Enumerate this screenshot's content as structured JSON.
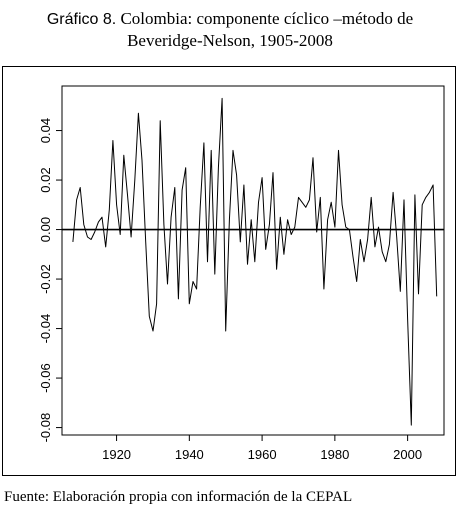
{
  "figure": {
    "label": "Gráfico 8.",
    "title_line1": "Colombia: componente cíclico –método de",
    "title_line2": "Beveridge-Nelson, 1905-2008",
    "source": "Fuente: Elaboración propia con información de la CEPAL"
  },
  "chart_data": {
    "type": "line",
    "title": "Colombia: componente cíclico –método de Beveridge-Nelson, 1905-2008",
    "xlabel": "",
    "ylabel": "",
    "xlim": [
      1905,
      2010
    ],
    "ylim": [
      -0.083,
      0.058
    ],
    "xticks": [
      1920,
      1940,
      1960,
      1980,
      2000
    ],
    "yticks": [
      -0.08,
      -0.06,
      -0.04,
      -0.02,
      0.0,
      0.02,
      0.04
    ],
    "ytick_labels": [
      "-0.08",
      "-0.06",
      "-0.04",
      "-0.02",
      "0.00",
      "0.02",
      "0.04"
    ],
    "reference_line": 0,
    "grid": false,
    "x": [
      1908,
      1909,
      1910,
      1911,
      1912,
      1913,
      1914,
      1915,
      1916,
      1917,
      1918,
      1919,
      1920,
      1921,
      1922,
      1923,
      1924,
      1925,
      1926,
      1927,
      1928,
      1929,
      1930,
      1931,
      1932,
      1933,
      1934,
      1935,
      1936,
      1937,
      1938,
      1939,
      1940,
      1941,
      1942,
      1943,
      1944,
      1945,
      1946,
      1947,
      1948,
      1949,
      1950,
      1951,
      1952,
      1953,
      1954,
      1955,
      1956,
      1957,
      1958,
      1959,
      1960,
      1961,
      1962,
      1963,
      1964,
      1965,
      1966,
      1967,
      1968,
      1969,
      1970,
      1971,
      1972,
      1973,
      1974,
      1975,
      1976,
      1977,
      1978,
      1979,
      1980,
      1981,
      1982,
      1983,
      1984,
      1985,
      1986,
      1987,
      1988,
      1989,
      1990,
      1991,
      1992,
      1993,
      1994,
      1995,
      1996,
      1997,
      1998,
      1999,
      2000,
      2001,
      2002,
      2003,
      2004,
      2005,
      2006,
      2007,
      2008
    ],
    "values": [
      -0.005,
      0.012,
      0.017,
      0.002,
      -0.003,
      -0.004,
      -0.001,
      0.003,
      0.005,
      -0.007,
      0.008,
      0.036,
      0.01,
      -0.002,
      0.03,
      0.014,
      -0.003,
      0.02,
      0.047,
      0.028,
      -0.005,
      -0.035,
      -0.041,
      -0.03,
      0.044,
      0.002,
      -0.022,
      0.005,
      0.017,
      -0.028,
      0.016,
      0.025,
      -0.03,
      -0.021,
      -0.024,
      0.009,
      0.035,
      -0.013,
      0.032,
      -0.018,
      0.025,
      0.053,
      -0.041,
      0.004,
      0.032,
      0.022,
      -0.005,
      0.018,
      -0.014,
      0.004,
      -0.013,
      0.011,
      0.021,
      -0.008,
      0.002,
      0.023,
      -0.016,
      0.005,
      -0.01,
      0.004,
      -0.002,
      0.001,
      0.013,
      0.011,
      0.009,
      0.012,
      0.029,
      -0.001,
      0.013,
      -0.024,
      0.004,
      0.011,
      0.001,
      0.032,
      0.01,
      0.001,
      0.0,
      -0.011,
      -0.021,
      -0.004,
      -0.013,
      -0.004,
      0.013,
      -0.007,
      0.001,
      -0.009,
      -0.013,
      -0.006,
      0.015,
      -0.003,
      -0.025,
      0.012,
      -0.036,
      -0.079,
      0.014,
      -0.026,
      0.01,
      0.013,
      0.015,
      0.018,
      -0.027
    ]
  },
  "style": {
    "line_color": "#000000",
    "background": "#ffffff"
  }
}
